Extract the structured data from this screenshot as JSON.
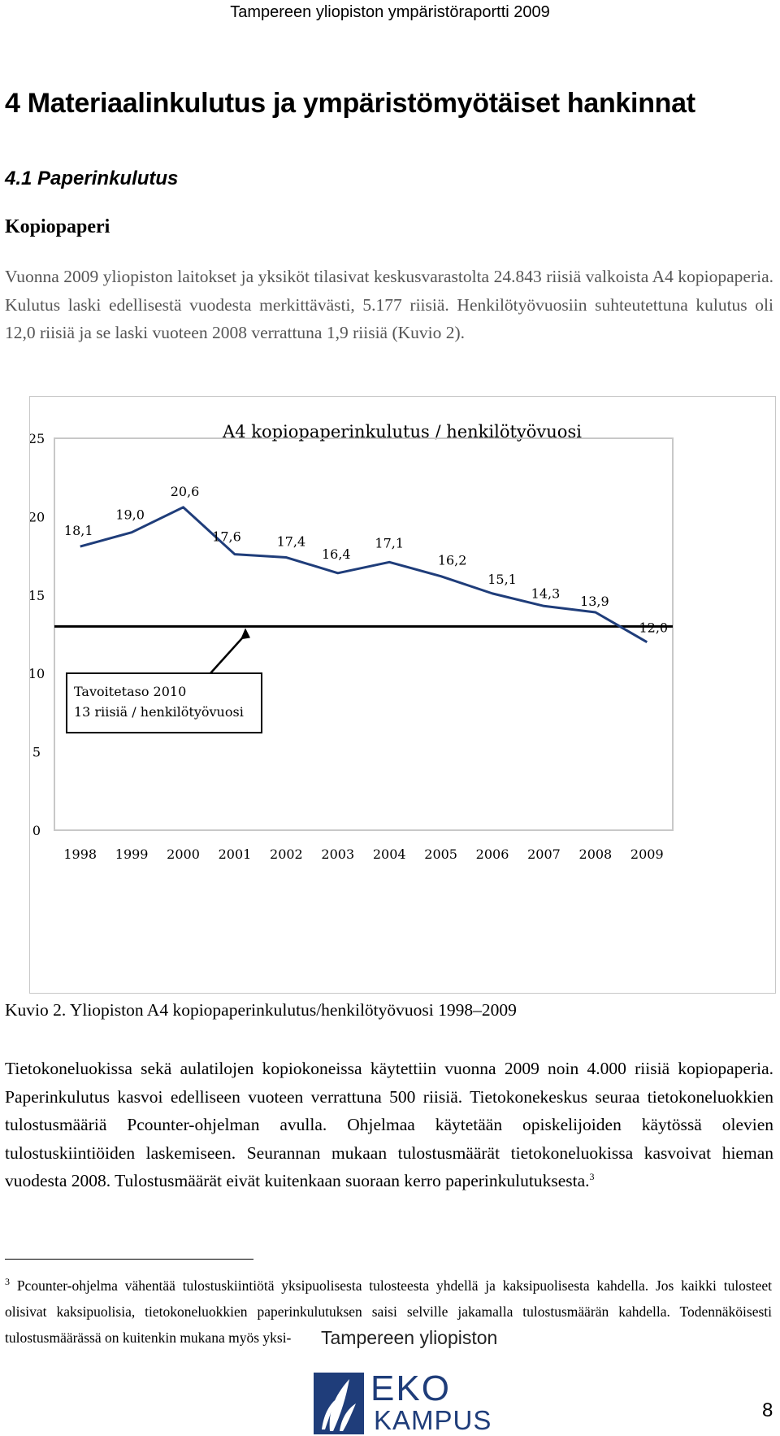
{
  "header": {
    "title": "Tampereen yliopiston ympäristöraportti 2009"
  },
  "section_title": "4 Materiaalinkulutus ja ympäristömyötäiset hankinnat",
  "subsection_title": "4.1 Paperinkulutus",
  "subheading": "Kopiopaperi",
  "paragraph1": "Vuonna 2009 yliopiston laitokset ja yksiköt tilasivat keskusvarastolta 24.843 riisiä valkoista A4 kopiopaperia. Kulutus laski edellisestä vuodesta merkittävästi, 5.177 riisiä. Henkilötyövuosiin suhteutettuna kulutus oli 12,0 riisiä ja se laski vuoteen 2008 verrattuna 1,9 riisiä (Kuvio 2).",
  "chart_data": {
    "type": "line",
    "title": "A4 kopiopaperinkulutus / henkilötyövuosi",
    "categories": [
      "1998",
      "1999",
      "2000",
      "2001",
      "2002",
      "2003",
      "2004",
      "2005",
      "2006",
      "2007",
      "2008",
      "2009"
    ],
    "values": [
      18.1,
      19.0,
      20.6,
      17.6,
      17.4,
      16.4,
      17.1,
      16.2,
      15.1,
      14.3,
      13.9,
      12.0
    ],
    "data_labels": [
      "18,1",
      "19,0",
      "20,6",
      "17,6",
      "17,4",
      "16,4",
      "17,1",
      "16,2",
      "15,1",
      "14,3",
      "13,9",
      "12,0"
    ],
    "y_ticks": [
      "0",
      "5",
      "10",
      "15",
      "20",
      "25"
    ],
    "ylim": [
      0,
      25
    ],
    "target_value": 13,
    "target_note": [
      "Tavoitetaso 2010",
      "13 riisiä / henkilötyövuosi"
    ],
    "grid": false,
    "line_color": "#1f3d7a",
    "target_color": "#000000"
  },
  "caption": "Kuvio 2. Yliopiston A4 kopiopaperinkulutus/henkilötyövuosi 1998–2009",
  "paragraph2": "Tietokoneluokissa sekä aulatilojen kopiokoneissa käytettiin vuonna 2009 noin 4.000 riisiä kopiopaperia. Paperinkulutus kasvoi edelliseen vuoteen verrattuna 500 riisiä. Tietokonekeskus seuraa tietokoneluokkien tulostusmääriä Pcounter-ohjelman avulla. Ohjelmaa käytetään opiskelijoiden käytössä olevien tulostuskiintiöiden laskemiseen. Seurannan mukaan tulostusmäärät tietokoneluokissa kasvoivat hieman vuodesta 2008. Tulostusmäärät eivät kuitenkaan suoraan kerro paperinkulutuksesta.",
  "paragraph2_ref": "3",
  "footnote": {
    "number": "3",
    "text": "Pcounter-ohjelma vähentää tulostuskiintiötä yksipuolisesta tulosteesta yhdellä ja kaksipuolisesta kahdella. Jos kaikki tulosteet olisivat kaksipuolisia, tietokoneluokkien paperinkulutuksen saisi selville jakamalla tulostusmäärän kahdella. Todennäköisesti tulostusmäärässä on kuitenkin mukana myös yksi-"
  },
  "logo": {
    "org": "Tampereen yliopiston",
    "word1": "EKO",
    "word2": "KAMPUS",
    "color": "#1f3d7a"
  },
  "page_number": "8"
}
